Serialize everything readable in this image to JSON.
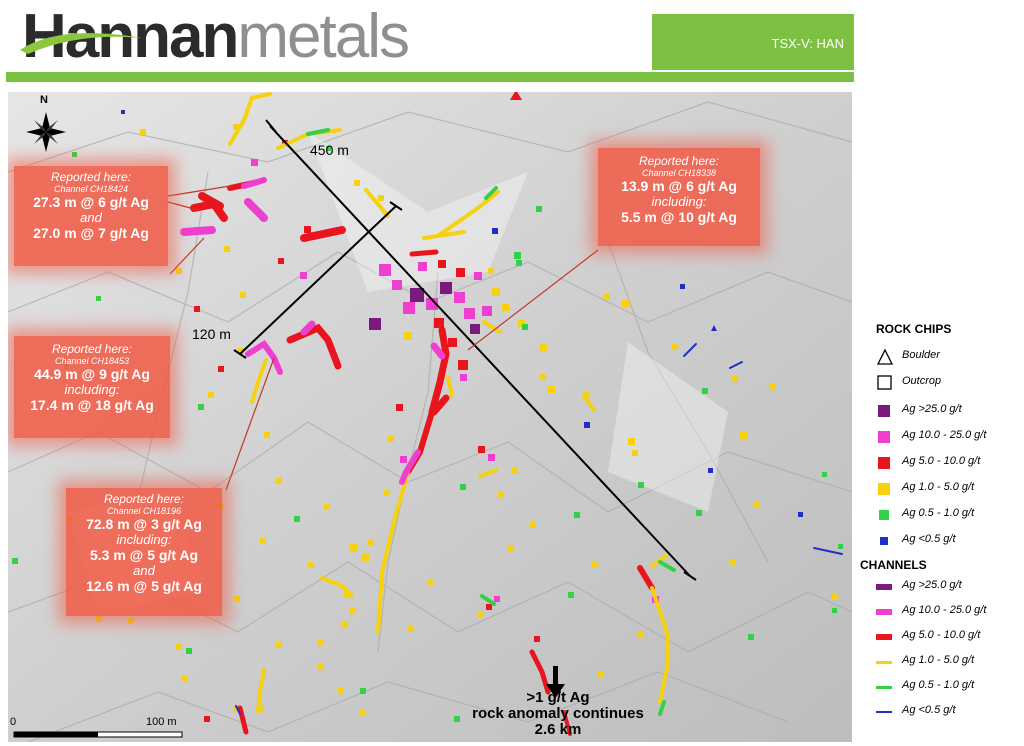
{
  "header": {
    "logo_part1": "Hannan",
    "logo_part2": "metals",
    "ticker": "TSX-V: HAN"
  },
  "map": {
    "north": "N",
    "dist_450": "450 m",
    "dist_120": "120 m",
    "scale_start": "0",
    "scale_end": "100 m",
    "anomaly_line1": ">1 g/t Ag",
    "anomaly_line2": "rock anomaly continues",
    "anomaly_line3": "2.6 km"
  },
  "callouts": [
    {
      "head": "Reported here:",
      "channel": "Channel CH18424",
      "l1": "27.3 m @ 6 g/t Ag",
      "l2": "and",
      "l3": "27.0 m @ 7 g/t Ag"
    },
    {
      "head": "Reported here:",
      "channel": "Channel CH18338",
      "l1": "13.9 m @ 6 g/t Ag",
      "l2": "including:",
      "l3": "5.5 m @ 10 g/t Ag"
    },
    {
      "head": "Reported here:",
      "channel": "Channel CH18453",
      "l1": "44.9 m @ 9 g/t Ag",
      "l2": "including:",
      "l3": "17.4 m @ 18 g/t Ag"
    },
    {
      "head": "Reported here:",
      "channel": "Channel CH18196",
      "l1": "72.8 m @ 3 g/t Ag",
      "l2": "including:",
      "l3": "5.3 m @ 5 g/t Ag",
      "l4": "and",
      "l5": "12.6 m @ 5 g/t Ag"
    }
  ],
  "legend": {
    "rock_title": "ROCK CHIPS",
    "rock": [
      {
        "label": "Boulder",
        "shape": "triangle"
      },
      {
        "label": "Outcrop",
        "shape": "square-outline"
      },
      {
        "label": "Ag >25.0 g/t",
        "color": "#7b1a7e"
      },
      {
        "label": "Ag 10.0 - 25.0 g/t",
        "color": "#ee3fd0"
      },
      {
        "label": "Ag 5.0 - 10.0 g/t",
        "color": "#e8151e"
      },
      {
        "label": "Ag 1.0 - 5.0 g/t",
        "color": "#f5d10e"
      },
      {
        "label": "Ag 0.5 - 1.0 g/t",
        "color": "#33d04a"
      },
      {
        "label": "Ag <0.5 g/t",
        "color": "#1f2fc4"
      }
    ],
    "channels_title": "CHANNELS",
    "channels": [
      {
        "label": "Ag >25.0 g/t",
        "color": "#7b1a7e"
      },
      {
        "label": "Ag 10.0 - 25.0 g/t",
        "color": "#ee3fd0"
      },
      {
        "label": "Ag 5.0 - 10.0 g/t",
        "color": "#e8151e"
      },
      {
        "label": "Ag 1.0 - 5.0 g/t",
        "color": "#f5d10e"
      },
      {
        "label": "Ag 0.5 - 1.0 g/t",
        "color": "#33d04a"
      },
      {
        "label": "Ag <0.5 g/t",
        "color": "#1f2fc4"
      }
    ]
  },
  "colors": {
    "brand_green": "#7dc142",
    "callout": "#f05c48"
  }
}
